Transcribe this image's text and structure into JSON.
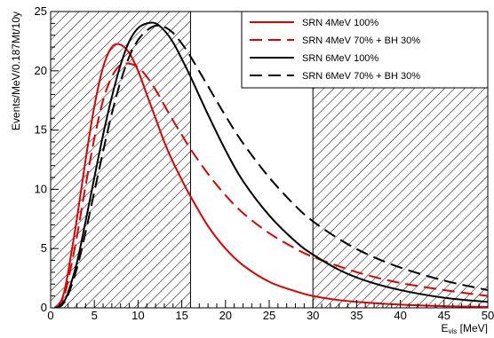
{
  "chart_data": {
    "type": "line",
    "title": "",
    "xlabel": "E_vis [MeV]",
    "xlabel_main": "E",
    "xlabel_sub": "vis",
    "xlabel_unit": " [MeV]",
    "ylabel": "Events/MeV/0.187Mt/10y",
    "xlim": [
      0,
      50
    ],
    "ylim": [
      0,
      25
    ],
    "x_ticks": [
      0,
      5,
      10,
      15,
      20,
      25,
      30,
      35,
      40,
      45,
      50
    ],
    "y_ticks": [
      0,
      5,
      10,
      15,
      20,
      25
    ],
    "x_tick_labels": [
      "0",
      "5",
      "10",
      "15",
      "20",
      "25",
      "30",
      "35",
      "40",
      "45",
      "50"
    ],
    "y_tick_labels": [
      "0",
      "5",
      "10",
      "15",
      "20",
      "25"
    ],
    "grid": false,
    "legend_position": "top-right",
    "shaded_regions": [
      {
        "x_from": 0,
        "x_to": 16,
        "pattern": "hatched"
      },
      {
        "x_from": 30,
        "x_to": 50,
        "pattern": "hatched"
      }
    ],
    "x": [
      0.5,
      1,
      1.5,
      2,
      3,
      4,
      5,
      6,
      7,
      8,
      9,
      10,
      11,
      12,
      13,
      14,
      15,
      16,
      18,
      20,
      22,
      25,
      28,
      30,
      33,
      36,
      40,
      45,
      50
    ],
    "series": [
      {
        "name": "SRN 4MeV 100%",
        "color": "#e00000",
        "dash": "solid",
        "values": [
          0,
          0.3,
          1.2,
          3.0,
          7.5,
          12.5,
          17.0,
          20.3,
          22.0,
          22.2,
          21.5,
          20.0,
          18.0,
          16.0,
          14.0,
          12.3,
          10.8,
          9.4,
          6.9,
          5.0,
          3.6,
          2.2,
          1.4,
          1.0,
          0.65,
          0.45,
          0.27,
          0.14,
          0.07
        ]
      },
      {
        "name": "SRN 4MeV 70% + BH 30%",
        "color": "#e00000",
        "dash": "dashed",
        "values": [
          0,
          0.2,
          0.9,
          2.3,
          6.0,
          10.3,
          14.3,
          17.5,
          19.5,
          20.5,
          20.6,
          20.3,
          19.5,
          18.4,
          17.1,
          15.8,
          14.6,
          13.4,
          11.3,
          9.5,
          8.0,
          6.3,
          5.0,
          4.3,
          3.5,
          2.8,
          2.1,
          1.5,
          1.0
        ]
      },
      {
        "name": "SRN 6MeV 100%",
        "color": "#000000",
        "dash": "solid",
        "values": [
          0,
          0.1,
          0.5,
          1.3,
          3.8,
          7.3,
          11.0,
          14.6,
          17.8,
          20.5,
          22.5,
          23.6,
          24.0,
          24.0,
          23.4,
          22.4,
          21.0,
          19.5,
          16.3,
          13.3,
          10.7,
          7.8,
          5.6,
          4.5,
          3.2,
          2.3,
          1.5,
          0.85,
          0.5
        ]
      },
      {
        "name": "SRN 6MeV 70% + BH 30%",
        "color": "#000000",
        "dash": "dashed",
        "values": [
          0,
          0.08,
          0.4,
          1.1,
          3.3,
          6.4,
          9.8,
          13.2,
          16.4,
          19.1,
          21.2,
          22.6,
          23.4,
          23.8,
          23.7,
          23.2,
          22.3,
          21.2,
          18.7,
          16.2,
          13.9,
          11.0,
          8.6,
          7.3,
          5.8,
          4.6,
          3.4,
          2.3,
          1.5
        ]
      }
    ]
  }
}
